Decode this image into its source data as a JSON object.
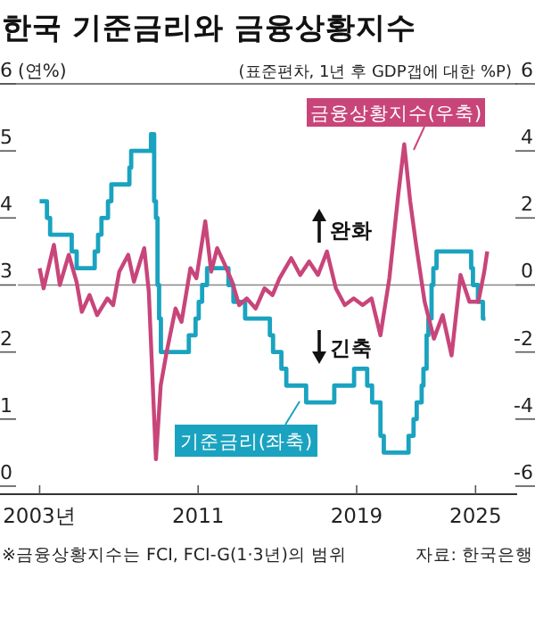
{
  "chart_data": {
    "type": "line",
    "title": "한국 기준금리와 금융상황지수",
    "ylabel": "(연%)",
    "y2label": "(표준편차, 1년 후 GDP갭에 대한 %P)",
    "xlim": [
      2001,
      2027.1
    ],
    "xticks": [
      {
        "value": 2003,
        "label": "2003년"
      },
      2011,
      2019,
      2025
    ],
    "ylim": [
      -0.12,
      6
    ],
    "yticks": [
      0,
      1,
      2,
      3,
      4,
      5,
      6
    ],
    "y2lim": [
      -6.24,
      6
    ],
    "y2ticks": [
      -6,
      -4,
      -2,
      0,
      2,
      4,
      6
    ],
    "grid": false,
    "legend": "bottom",
    "ref_lines": [
      {
        "axis": "y2",
        "value": 0,
        "color": "#888888"
      }
    ],
    "series": [
      {
        "name": "기준금리(좌축)",
        "type": "step",
        "color": "#1aa3c0",
        "x": [
          2003.0,
          2003.37,
          2003.53,
          2004.62,
          2004.87,
          2005.78,
          2005.95,
          2006.12,
          2006.45,
          2006.62,
          2007.53,
          2007.62,
          2008.62,
          2008.78,
          2008.87,
          2008.95,
          2009.03,
          2009.12,
          2010.53,
          2010.87,
          2011.03,
          2011.2,
          2011.45,
          2012.53,
          2012.78,
          2013.37,
          2014.62,
          2014.78,
          2015.2,
          2015.45,
          2016.45,
          2017.87,
          2018.87,
          2019.53,
          2019.78,
          2020.2,
          2020.37,
          2021.62,
          2021.87,
          2022.03,
          2022.28,
          2022.37,
          2022.53,
          2022.62,
          2022.78,
          2022.87,
          2023.03,
          2024.78,
          2024.87,
          2025.12,
          2025.37,
          2025.5
        ],
        "values": [
          4.25,
          4.0,
          3.75,
          3.5,
          3.25,
          3.5,
          3.75,
          4.0,
          4.25,
          4.5,
          4.75,
          5.0,
          5.25,
          4.25,
          4.0,
          3.0,
          2.5,
          2.0,
          2.25,
          2.5,
          2.75,
          3.0,
          3.25,
          3.0,
          2.75,
          2.5,
          2.25,
          2.0,
          1.75,
          1.5,
          1.25,
          1.5,
          1.75,
          1.5,
          1.25,
          0.75,
          0.5,
          0.75,
          1.0,
          1.25,
          1.5,
          1.75,
          2.25,
          2.5,
          3.0,
          3.25,
          3.5,
          3.25,
          3.0,
          2.75,
          2.5,
          2.5
        ]
      },
      {
        "name": "금융상황지수(우축)",
        "type": "line",
        "axis": "y2",
        "color": "#c8457a",
        "x": [
          2003.0,
          2003.2,
          2003.72,
          2004.02,
          2004.47,
          2004.86,
          2005.13,
          2005.52,
          2005.9,
          2006.42,
          2006.71,
          2007.02,
          2007.47,
          2007.76,
          2008.28,
          2008.51,
          2008.87,
          2009.11,
          2009.41,
          2009.86,
          2010.16,
          2010.61,
          2010.91,
          2011.36,
          2011.66,
          2011.96,
          2012.35,
          2012.71,
          2013.07,
          2013.45,
          2013.9,
          2014.35,
          2014.75,
          2015.11,
          2015.7,
          2016.15,
          2016.6,
          2017.05,
          2017.5,
          2017.95,
          2018.4,
          2018.85,
          2019.3,
          2019.75,
          2020.2,
          2020.65,
          2021.1,
          2021.4,
          2021.7,
          2022.0,
          2022.43,
          2022.9,
          2023.34,
          2023.79,
          2024.24,
          2024.69,
          2025.14,
          2025.44,
          2025.59
        ],
        "values": [
          0.5,
          -0.1,
          1.2,
          0.0,
          0.9,
          0.1,
          -0.8,
          -0.3,
          -0.9,
          -0.4,
          -0.6,
          0.4,
          0.9,
          0.1,
          1.1,
          -0.2,
          -5.2,
          -3.0,
          -2.0,
          -0.7,
          -1.1,
          0.5,
          0.2,
          1.9,
          0.4,
          1.1,
          0.6,
          0.1,
          -0.6,
          -0.4,
          -0.7,
          -0.1,
          -0.3,
          0.2,
          0.8,
          0.3,
          0.7,
          0.3,
          1.0,
          -0.1,
          -0.6,
          -0.4,
          -0.6,
          -0.4,
          -1.5,
          0.2,
          2.7,
          4.2,
          2.5,
          1.2,
          -0.5,
          -1.6,
          -0.9,
          -2.1,
          0.3,
          -0.5,
          -0.5,
          0.4,
          1.0
        ]
      }
    ],
    "annotations": [
      "완화",
      "긴축",
      "※금융상황지수는 FCI, FCI-G(1·3년)의 범위",
      "자료: 한국은행"
    ]
  }
}
